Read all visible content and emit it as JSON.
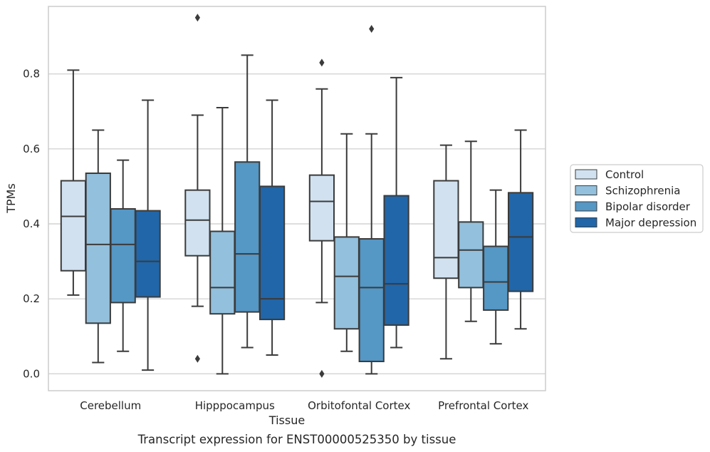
{
  "chart_data": {
    "type": "box",
    "xlabel": "Tissue",
    "ylabel": "TPMs",
    "caption": "Transcript expression for ENST00000525350 by tissue",
    "ylim": [
      -0.045,
      0.98
    ],
    "yticks": [
      0.0,
      0.2,
      0.4,
      0.6,
      0.8
    ],
    "ytick_labels": [
      "0.0",
      "0.2",
      "0.4",
      "0.6",
      "0.8"
    ],
    "grid": "horizontal",
    "legend_placement": "right",
    "categories": [
      "Cerebellum",
      "Hipppocampus",
      "Orbitofontal Cortex",
      "Prefrontal Cortex"
    ],
    "series": [
      {
        "name": "Control",
        "color": "#d1e1f0",
        "boxes": [
          {
            "whislo": 0.21,
            "q1": 0.275,
            "med": 0.42,
            "q3": 0.515,
            "whishi": 0.81,
            "fliers": []
          },
          {
            "whislo": 0.18,
            "q1": 0.315,
            "med": 0.41,
            "q3": 0.49,
            "whishi": 0.69,
            "fliers": [
              0.95,
              0.04
            ]
          },
          {
            "whislo": 0.19,
            "q1": 0.355,
            "med": 0.46,
            "q3": 0.53,
            "whishi": 0.76,
            "fliers": [
              0.83,
              0.0
            ]
          },
          {
            "whislo": 0.04,
            "q1": 0.255,
            "med": 0.31,
            "q3": 0.515,
            "whishi": 0.61,
            "fliers": []
          }
        ]
      },
      {
        "name": "Schizophrenia",
        "color": "#93c0dc",
        "boxes": [
          {
            "whislo": 0.03,
            "q1": 0.135,
            "med": 0.345,
            "q3": 0.535,
            "whishi": 0.65,
            "fliers": []
          },
          {
            "whislo": 0.0,
            "q1": 0.16,
            "med": 0.23,
            "q3": 0.38,
            "whishi": 0.71,
            "fliers": []
          },
          {
            "whislo": 0.06,
            "q1": 0.12,
            "med": 0.26,
            "q3": 0.365,
            "whishi": 0.64,
            "fliers": []
          },
          {
            "whislo": 0.14,
            "q1": 0.23,
            "med": 0.33,
            "q3": 0.405,
            "whishi": 0.62,
            "fliers": []
          }
        ]
      },
      {
        "name": "Bipolar disorder",
        "color": "#5597c5",
        "boxes": [
          {
            "whislo": 0.06,
            "q1": 0.19,
            "med": 0.345,
            "q3": 0.44,
            "whishi": 0.57,
            "fliers": []
          },
          {
            "whislo": 0.07,
            "q1": 0.165,
            "med": 0.32,
            "q3": 0.565,
            "whishi": 0.85,
            "fliers": []
          },
          {
            "whislo": 0.0,
            "q1": 0.033,
            "med": 0.23,
            "q3": 0.36,
            "whishi": 0.64,
            "fliers": [
              0.92
            ]
          },
          {
            "whislo": 0.08,
            "q1": 0.17,
            "med": 0.245,
            "q3": 0.34,
            "whishi": 0.49,
            "fliers": []
          }
        ]
      },
      {
        "name": "Major depression",
        "color": "#2166a8",
        "boxes": [
          {
            "whislo": 0.01,
            "q1": 0.205,
            "med": 0.3,
            "q3": 0.435,
            "whishi": 0.73,
            "fliers": []
          },
          {
            "whislo": 0.05,
            "q1": 0.145,
            "med": 0.2,
            "q3": 0.5,
            "whishi": 0.73,
            "fliers": []
          },
          {
            "whislo": 0.07,
            "q1": 0.13,
            "med": 0.24,
            "q3": 0.475,
            "whishi": 0.79,
            "fliers": []
          },
          {
            "whislo": 0.12,
            "q1": 0.22,
            "med": 0.365,
            "q3": 0.483,
            "whishi": 0.65,
            "fliers": []
          }
        ]
      }
    ]
  }
}
